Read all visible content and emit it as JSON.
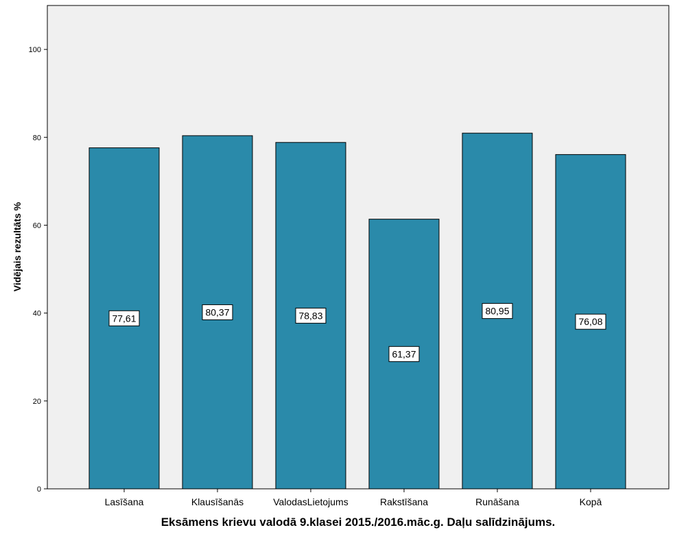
{
  "chart_data": {
    "type": "bar",
    "categories": [
      "Lasīšana",
      "Klausīšanās",
      "ValodasLietojums",
      "Rakstīšana",
      "Runāšana",
      "Kopā"
    ],
    "values": [
      77.61,
      80.37,
      78.83,
      61.37,
      80.95,
      76.08
    ],
    "value_labels": [
      "77,61",
      "80,37",
      "78,83",
      "61,37",
      "80,95",
      "76,08"
    ],
    "xlabel": "Eksāmens krievu valodā 9.klasei 2015./2016.māc.g. Daļu salīdzinājums.",
    "ylabel": "Vidējais rezultāts %",
    "ylim": [
      0,
      110
    ],
    "yticks": [
      0,
      20,
      40,
      60,
      80,
      100
    ],
    "grid": false,
    "legend": "none",
    "colors": {
      "bar": "#2a8aaa",
      "plot_background": "#f0f0f0",
      "axis": "#000000"
    }
  }
}
